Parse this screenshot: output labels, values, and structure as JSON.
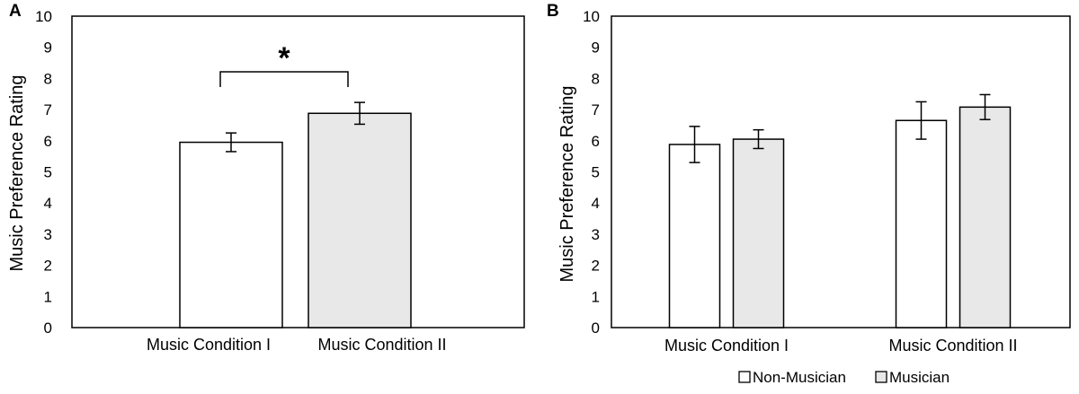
{
  "chart_data": [
    {
      "panel": "A",
      "type": "bar",
      "ylabel": "Music Preference Rating",
      "ylim": [
        0,
        10
      ],
      "yticks": [
        0,
        1,
        2,
        3,
        4,
        5,
        6,
        7,
        8,
        9,
        10
      ],
      "categories": [
        "Music Condition I",
        "Music Condition II"
      ],
      "values": [
        5.95,
        6.88
      ],
      "errors": [
        0.3,
        0.35
      ],
      "colors": [
        "#ffffff",
        "#e8e8e8"
      ],
      "significance": {
        "label": "*",
        "between": [
          0,
          1
        ]
      },
      "grid": false
    },
    {
      "panel": "B",
      "type": "bar",
      "ylabel": "Music Preference Rating",
      "ylim": [
        0,
        10
      ],
      "yticks": [
        0,
        1,
        2,
        3,
        4,
        5,
        6,
        7,
        8,
        9,
        10
      ],
      "categories": [
        "Music Condition I",
        "Music Condition II"
      ],
      "series": [
        {
          "name": "Non-Musician",
          "color": "#ffffff",
          "values": [
            5.88,
            6.65
          ],
          "errors": [
            0.58,
            0.6
          ]
        },
        {
          "name": "Musician",
          "color": "#e8e8e8",
          "values": [
            6.05,
            7.08
          ],
          "errors": [
            0.3,
            0.4
          ]
        }
      ],
      "legend": "bottom",
      "grid": false
    }
  ]
}
